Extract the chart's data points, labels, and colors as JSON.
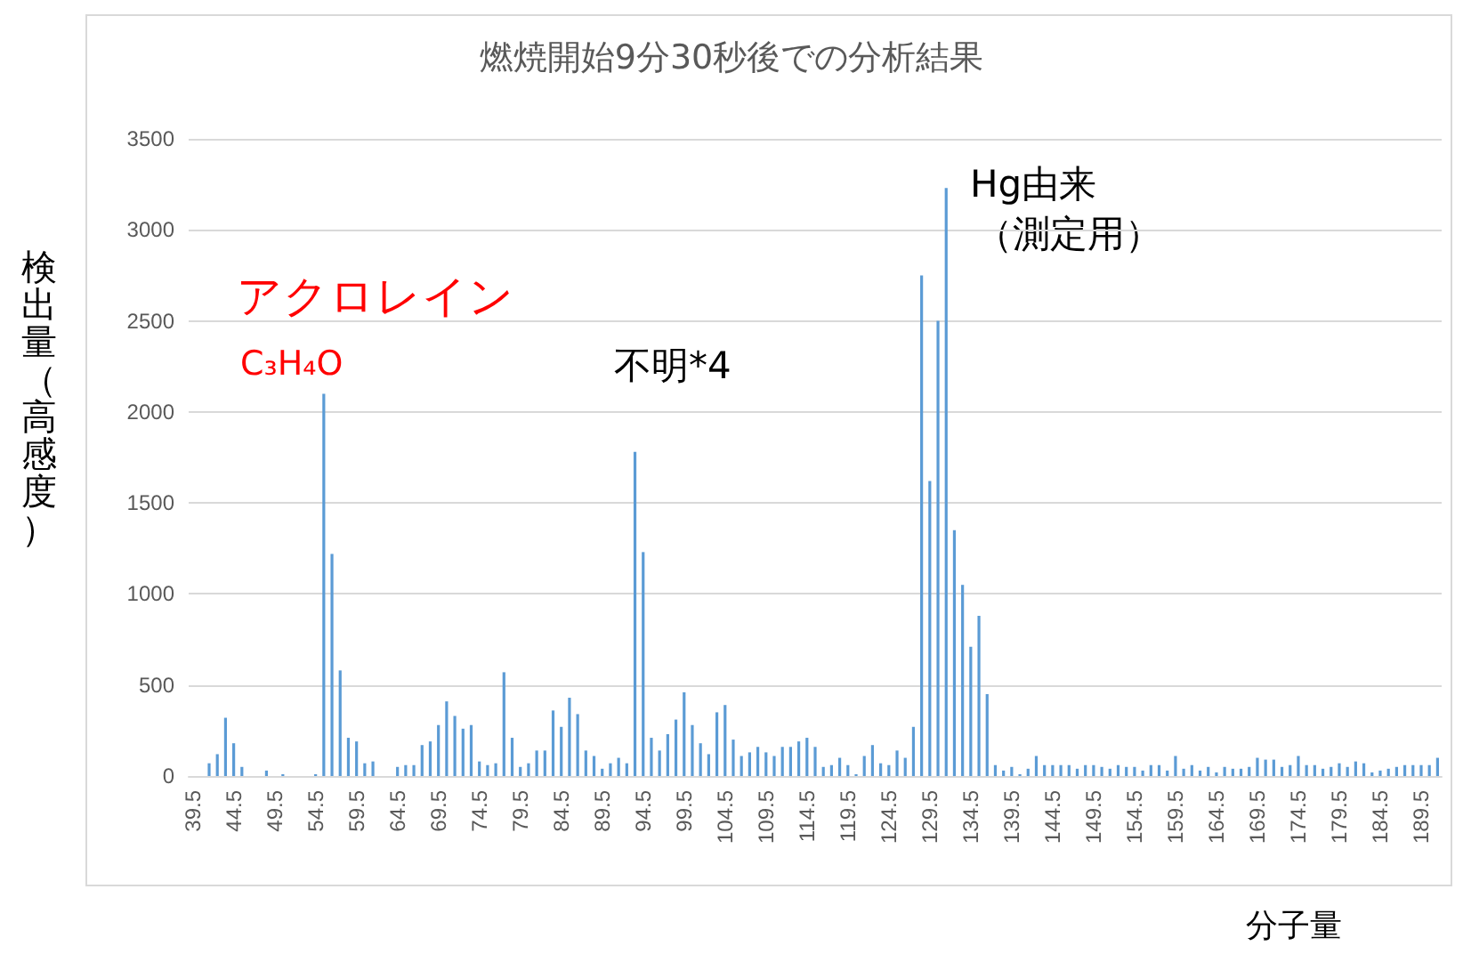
{
  "chart_data": {
    "type": "bar",
    "title": "燃焼開始9分30秒後での分析結果",
    "xlabel": "分子量",
    "ylabel": "検出量（高感度）",
    "annotations": [
      "アクロレイン",
      "C₃H₄O",
      "不明*4",
      "Hg由来",
      "（測定用）"
    ],
    "categories": [
      "39.5",
      null,
      null,
      null,
      null,
      "44.5",
      null,
      null,
      null,
      null,
      "49.5",
      null,
      null,
      null,
      null,
      "54.5",
      null,
      null,
      null,
      null,
      "59.5",
      null,
      null,
      null,
      null,
      "64.5",
      null,
      null,
      null,
      null,
      "69.5",
      null,
      null,
      null,
      null,
      "74.5",
      null,
      null,
      null,
      null,
      "79.5",
      null,
      null,
      null,
      null,
      "84.5",
      null,
      null,
      null,
      null,
      "89.5",
      null,
      null,
      null,
      null,
      "94.5",
      null,
      null,
      null,
      null,
      "99.5",
      null,
      null,
      null,
      null,
      "104.5",
      null,
      null,
      null,
      null,
      "109.5",
      null,
      null,
      null,
      null,
      "114.5",
      null,
      null,
      null,
      null,
      "119.5",
      null,
      null,
      null,
      null,
      "124.5",
      null,
      null,
      null,
      null,
      "129.5",
      null,
      null,
      null,
      null,
      "134.5",
      null,
      null,
      null,
      null,
      "139.5",
      null,
      null,
      null,
      null,
      "144.5",
      null,
      null,
      null,
      null,
      "149.5",
      null,
      null,
      null,
      null,
      "154.5",
      null,
      null,
      null,
      null,
      "159.5",
      null,
      null,
      null,
      null,
      "164.5",
      null,
      null,
      null,
      null,
      "169.5",
      null,
      null,
      null,
      null,
      "174.5",
      null,
      null,
      null,
      null,
      "179.5",
      null,
      null,
      null,
      null,
      "184.5",
      null,
      null,
      null,
      null,
      "189.5",
      null,
      null
    ],
    "values": [
      0,
      0,
      70,
      120,
      320,
      180,
      50,
      0,
      0,
      30,
      0,
      10,
      0,
      0,
      0,
      10,
      2100,
      1220,
      580,
      210,
      190,
      70,
      80,
      0,
      0,
      50,
      60,
      60,
      170,
      190,
      280,
      410,
      330,
      260,
      280,
      80,
      60,
      70,
      570,
      210,
      50,
      70,
      140,
      140,
      360,
      270,
      430,
      340,
      140,
      110,
      40,
      70,
      100,
      70,
      1780,
      1230,
      210,
      140,
      230,
      310,
      460,
      280,
      180,
      120,
      350,
      390,
      200,
      110,
      130,
      160,
      130,
      110,
      160,
      160,
      190,
      210,
      160,
      50,
      60,
      100,
      60,
      10,
      110,
      170,
      70,
      60,
      140,
      100,
      270,
      2750,
      1620,
      2500,
      3230,
      1350,
      1050,
      710,
      880,
      450,
      60,
      30,
      50,
      10,
      40,
      110,
      60,
      60,
      60,
      60,
      40,
      60,
      60,
      50,
      40,
      60,
      50,
      50,
      30,
      60,
      60,
      30,
      110,
      40,
      60,
      30,
      50,
      20,
      50,
      40,
      40,
      50,
      100,
      90,
      90,
      50,
      60,
      110,
      60,
      60,
      40,
      50,
      70,
      50,
      80,
      70,
      20,
      30,
      40,
      50,
      60,
      60,
      60,
      60,
      100
    ],
    "color": "#5b9bd5",
    "ylim": [
      0,
      3500
    ],
    "yticks": [
      0,
      500,
      1000,
      1500,
      2000,
      2500,
      3000,
      3500
    ],
    "grid": "y"
  }
}
